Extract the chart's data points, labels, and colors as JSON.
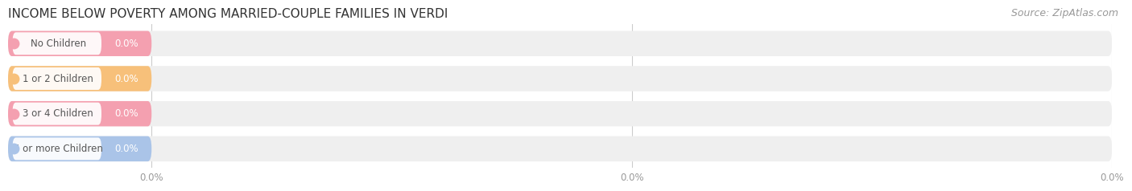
{
  "title": "INCOME BELOW POVERTY AMONG MARRIED-COUPLE FAMILIES IN VERDI",
  "source": "Source: ZipAtlas.com",
  "categories": [
    "No Children",
    "1 or 2 Children",
    "3 or 4 Children",
    "5 or more Children"
  ],
  "values": [
    0.0,
    0.0,
    0.0,
    0.0
  ],
  "bar_colors": [
    "#f4a0b0",
    "#f7c07a",
    "#f4a0b0",
    "#aac4e8"
  ],
  "background_color": "#ffffff",
  "bar_bg_color": "#efefef",
  "bar_bg_color2": "#e8e8e8",
  "title_fontsize": 11,
  "label_fontsize": 8.5,
  "source_fontsize": 9,
  "value_label_color": "#ffffff",
  "tick_label_color": "#999999",
  "grid_color": "#cccccc",
  "xlim": [
    0,
    100
  ],
  "colored_bar_pct": 13.0,
  "xtick_positions": [
    13.0,
    56.5,
    100.0
  ],
  "xtick_labels": [
    "0.0%",
    "0.0%",
    "0.0%"
  ]
}
